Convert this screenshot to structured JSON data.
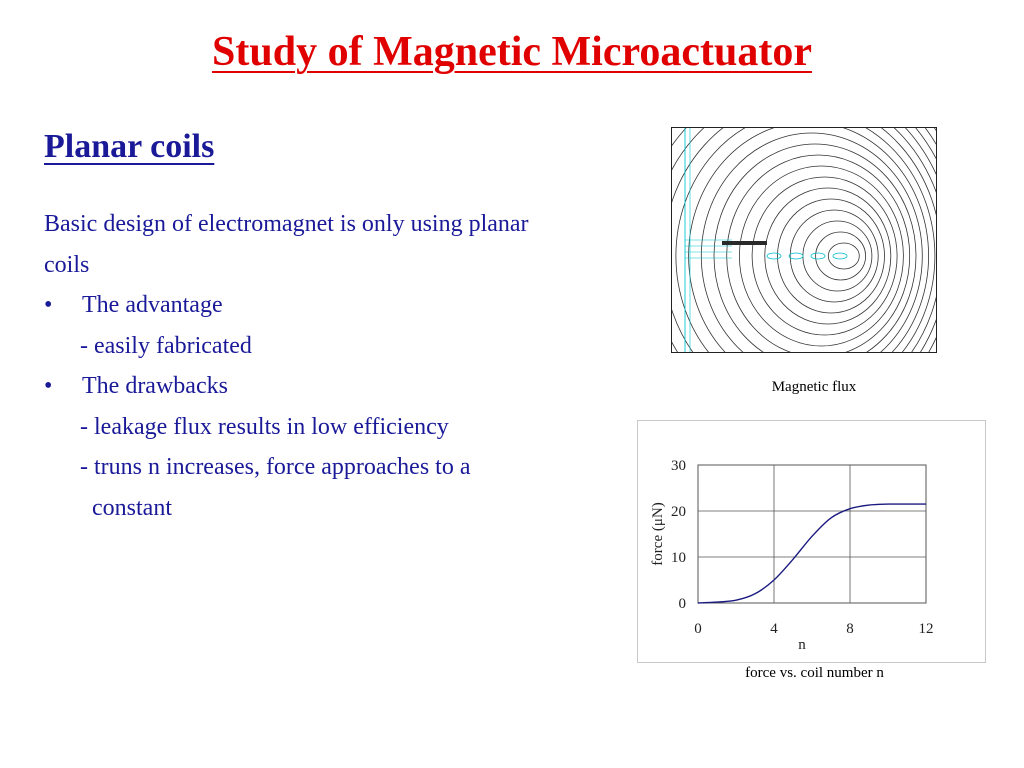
{
  "slide": {
    "title": "Study of Magnetic Microactuator",
    "subtitle": "Planar coils",
    "lines": [
      "Basic design of electromagnet is only using planar",
      "coils",
      "The advantage",
      "- easily fabricated",
      "The drawbacks",
      "- leakage flux results in low efficiency",
      "- truns n increases, force approaches to a",
      "constant"
    ],
    "bullet": "•"
  },
  "figures": {
    "flux_caption": "Magnetic flux",
    "chart_caption": "force vs. coil number n"
  },
  "colors": {
    "title": "#e00000",
    "text": "#1a1a99",
    "curve": "#1a1a80"
  },
  "chart_data": {
    "type": "line",
    "xlabel": "n",
    "ylabel": "force (μN)",
    "xlim": [
      0,
      12
    ],
    "ylim": [
      0,
      30
    ],
    "xticks": [
      "0",
      "4",
      "8",
      "12"
    ],
    "yticks": [
      "0",
      "10",
      "20",
      "30"
    ],
    "grid": true,
    "series": [
      {
        "x": [
          0,
          1,
          2,
          3,
          4,
          5,
          6,
          7,
          8,
          9,
          10,
          11,
          12
        ],
        "values": [
          0,
          0.2,
          0.6,
          2,
          5,
          9.5,
          14.5,
          18.5,
          20.5,
          21.3,
          21.5,
          21.5,
          21.5
        ]
      }
    ]
  }
}
